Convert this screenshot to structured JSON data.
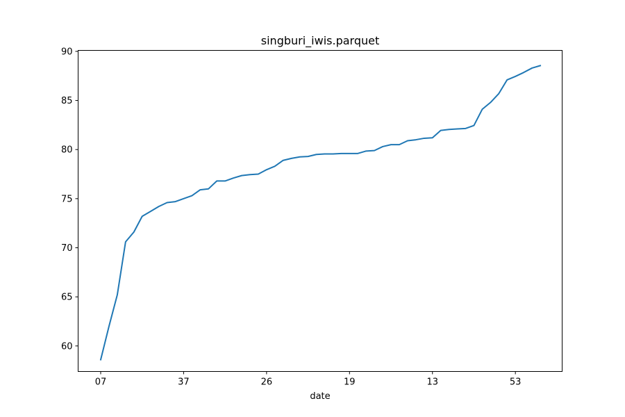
{
  "chart_data": {
    "type": "line",
    "title": "singburi_iwis.parquet",
    "xlabel": "date",
    "ylabel": "",
    "x_tick_labels": [
      "07",
      "37",
      "26",
      "19",
      "13",
      "53"
    ],
    "y_ticks": [
      60,
      65,
      70,
      75,
      80,
      85,
      90
    ],
    "ylim": [
      57.4,
      90.1
    ],
    "grid": false,
    "legend": "none",
    "line_color": "#1f77b4",
    "series": [
      {
        "values": [
          58.6,
          62.0,
          65.2,
          70.6,
          71.6,
          73.2,
          73.7,
          74.2,
          74.6,
          74.7,
          75.0,
          75.3,
          75.9,
          76.0,
          76.8,
          76.8,
          77.1,
          77.35,
          77.45,
          77.5,
          77.95,
          78.3,
          78.9,
          79.1,
          79.25,
          79.3,
          79.5,
          79.55,
          79.55,
          79.6,
          79.6,
          79.6,
          79.85,
          79.9,
          80.3,
          80.5,
          80.5,
          80.9,
          81.0,
          81.15,
          81.2,
          81.95,
          82.05,
          82.1,
          82.15,
          82.45,
          84.1,
          84.8,
          85.7,
          87.1,
          87.45,
          87.85,
          88.3,
          88.55
        ]
      }
    ]
  }
}
